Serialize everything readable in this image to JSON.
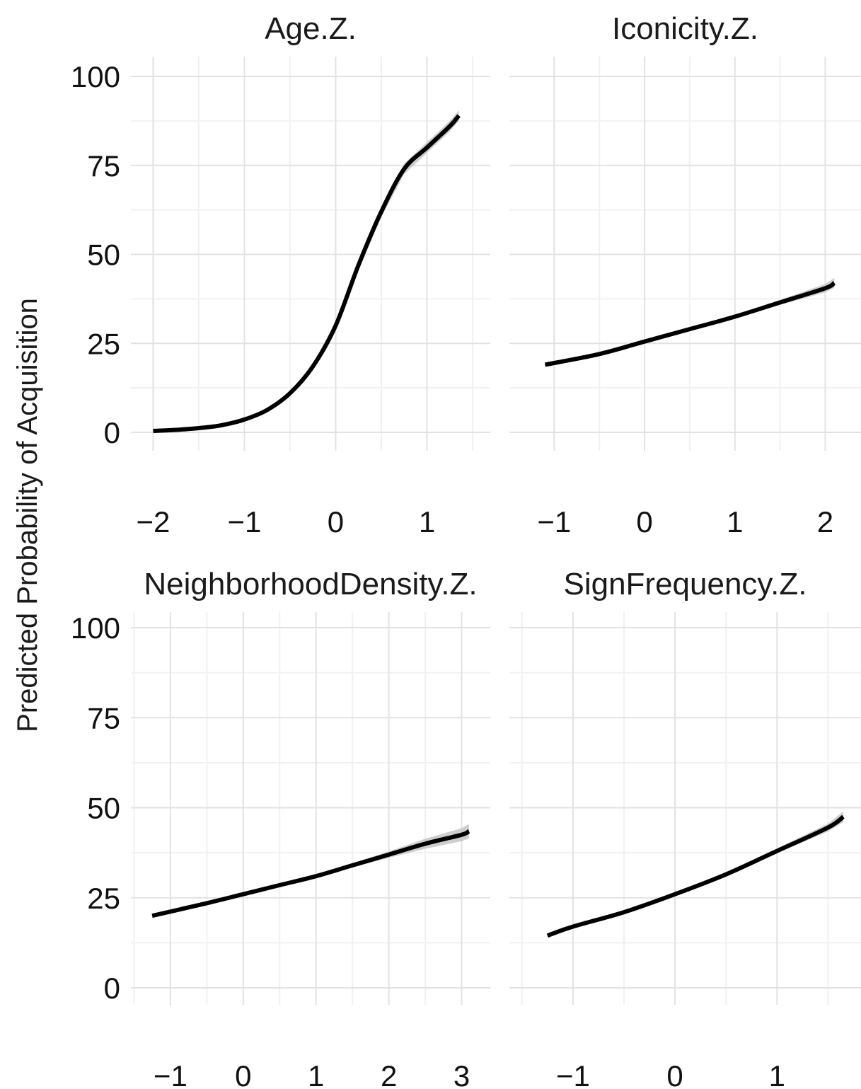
{
  "chart_data": {
    "type": "line",
    "ylabel": "Predicted Probability of Acquisition",
    "panels": [
      {
        "title": "Age.Z.",
        "xlim": [
          -2.05,
          1.5
        ],
        "ylim": [
          0,
          100
        ],
        "xticks": [
          -2,
          -1,
          0,
          1
        ],
        "xtick_labels": [
          "−2",
          "−1",
          "0",
          "1"
        ],
        "yticks": [
          0,
          25,
          50,
          75,
          100
        ],
        "ytick_labels": [
          "0",
          "25",
          "50",
          "75",
          "100"
        ],
        "series": [
          {
            "x": [
              -2.0,
              -1.75,
              -1.5,
              -1.25,
              -1.0,
              -0.75,
              -0.5,
              -0.25,
              0.0,
              0.25,
              0.5,
              0.75,
              1.0,
              1.25,
              1.35
            ],
            "y": [
              0.4,
              0.7,
              1.2,
              2.0,
              3.6,
              6.3,
              11.0,
              18.5,
              30.0,
              47.0,
              62.0,
              74.0,
              80.0,
              86.0,
              89.0
            ],
            "lower": [
              0.3,
              0.6,
              1.1,
              1.9,
              3.4,
              6.0,
              10.5,
              17.8,
              29.0,
              45.5,
              60.5,
              72.5,
              78.5,
              84.5,
              87.5
            ],
            "upper": [
              0.5,
              0.8,
              1.3,
              2.1,
              3.8,
              6.6,
              11.5,
              19.2,
              31.0,
              48.5,
              63.5,
              75.5,
              81.5,
              87.5,
              90.5
            ]
          }
        ]
      },
      {
        "title": "Iconicity.Z.",
        "xlim": [
          -1.3,
          2.2
        ],
        "ylim": [
          0,
          100
        ],
        "xticks": [
          -1,
          0,
          1,
          2
        ],
        "xtick_labels": [
          "−1",
          "0",
          "1",
          "2"
        ],
        "yticks": [
          0,
          25,
          50,
          75,
          100
        ],
        "ytick_labels": [
          "0",
          "25",
          "50",
          "75",
          "100"
        ],
        "series": [
          {
            "x": [
              -1.1,
              -0.5,
              0.0,
              0.5,
              1.0,
              1.5,
              2.0,
              2.1
            ],
            "y": [
              19.0,
              22.0,
              25.5,
              29.0,
              32.5,
              36.5,
              40.5,
              42.0
            ],
            "lower": [
              18.5,
              21.6,
              25.2,
              28.6,
              32.0,
              35.8,
              39.3,
              40.6
            ],
            "upper": [
              19.5,
              22.4,
              25.8,
              29.4,
              33.0,
              37.2,
              41.7,
              43.4
            ]
          }
        ]
      },
      {
        "title": "NeighborhoodDensity.Z.",
        "xlim": [
          -1.3,
          3.15
        ],
        "ylim": [
          0,
          100
        ],
        "xticks": [
          -1,
          0,
          1,
          2,
          3
        ],
        "xtick_labels": [
          "−1",
          "0",
          "1",
          "2",
          "3"
        ],
        "yticks": [
          0,
          25,
          50,
          75,
          100
        ],
        "ytick_labels": [
          "0",
          "25",
          "50",
          "75",
          "100"
        ],
        "series": [
          {
            "x": [
              -1.25,
              -0.5,
              0.0,
              0.5,
              1.0,
              1.5,
              2.0,
              2.5,
              3.0,
              3.1
            ],
            "y": [
              20.0,
              23.5,
              26.0,
              28.5,
              31.0,
              34.0,
              37.0,
              40.0,
              42.5,
              43.5
            ],
            "lower": [
              19.5,
              23.1,
              25.7,
              28.2,
              30.6,
              33.4,
              36.1,
              38.6,
              40.7,
              41.5
            ],
            "upper": [
              20.5,
              23.9,
              26.3,
              28.8,
              31.4,
              34.6,
              37.9,
              41.4,
              44.3,
              45.5
            ]
          }
        ]
      },
      {
        "title": "SignFrequency.Z.",
        "xlim": [
          -1.45,
          1.65
        ],
        "ylim": [
          0,
          100
        ],
        "xticks": [
          -1,
          0,
          1
        ],
        "xtick_labels": [
          "−1",
          "0",
          "1"
        ],
        "yticks": [
          0,
          25,
          50,
          75,
          100
        ],
        "ytick_labels": [
          "0",
          "25",
          "50",
          "75",
          "100"
        ],
        "series": [
          {
            "x": [
              -1.25,
              -1.0,
              -0.5,
              0.0,
              0.5,
              1.0,
              1.5,
              1.65
            ],
            "y": [
              14.5,
              17.0,
              21.0,
              26.0,
              31.5,
              38.0,
              44.5,
              47.5
            ],
            "lower": [
              14.1,
              16.6,
              20.7,
              25.7,
              31.1,
              37.3,
              43.4,
              46.0
            ],
            "upper": [
              14.9,
              17.4,
              21.3,
              26.3,
              31.9,
              38.7,
              45.6,
              49.0
            ]
          }
        ]
      }
    ]
  }
}
